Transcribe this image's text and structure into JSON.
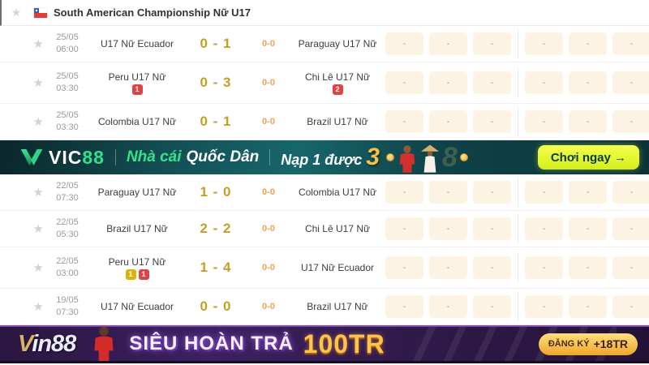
{
  "header": {
    "title": "South American Championship Nữ U17",
    "flag_icon": "chile-flag",
    "star_icon": "favorite-star"
  },
  "sections": {
    "matches_before_vic_banner": 3
  },
  "odds": {
    "placeholder": "-",
    "groups": 2,
    "columns_per_group": 3
  },
  "matches": [
    {
      "date": "25/05",
      "time": "06:00",
      "home": "U17 Nữ Ecuador",
      "score": "0 - 1",
      "ht": "0-0",
      "away": "Paraguay U17 Nữ",
      "home_badges": [],
      "away_badges": []
    },
    {
      "date": "25/05",
      "time": "03:30",
      "home": "Peru U17 Nữ",
      "score": "0 - 3",
      "ht": "0-0",
      "away": "Chi Lê U17 Nữ",
      "home_badges": [
        {
          "type": "red",
          "count": "1"
        }
      ],
      "away_badges": [
        {
          "type": "red",
          "count": "2"
        }
      ]
    },
    {
      "date": "25/05",
      "time": "03:30",
      "home": "Colombia U17 Nữ",
      "score": "0 - 1",
      "ht": "0-0",
      "away": "Brazil U17 Nữ",
      "home_badges": [],
      "away_badges": []
    },
    {
      "date": "22/05",
      "time": "07:30",
      "home": "Paraguay U17 Nữ",
      "score": "1 - 0",
      "ht": "0-0",
      "away": "Colombia U17 Nữ",
      "home_badges": [],
      "away_badges": []
    },
    {
      "date": "22/05",
      "time": "05:30",
      "home": "Brazil U17 Nữ",
      "score": "2 - 2",
      "ht": "0-0",
      "away": "Chi Lê U17 Nữ",
      "home_badges": [],
      "away_badges": []
    },
    {
      "date": "22/05",
      "time": "03:00",
      "home": "Peru U17 Nữ",
      "score": "1 - 4",
      "ht": "0-0",
      "away": "U17 Nữ Ecuador",
      "home_badges": [
        {
          "type": "yellow",
          "count": "1"
        },
        {
          "type": "red",
          "count": "1"
        }
      ],
      "away_badges": []
    },
    {
      "date": "19/05",
      "time": "07:30",
      "home": "U17 Nữ Ecuador",
      "score": "0 - 0",
      "ht": "0-0",
      "away": "Brazil U17 Nữ",
      "home_badges": [],
      "away_badges": []
    }
  ],
  "vic_banner": {
    "brand": "VIC88",
    "brand_prefix": "VIC",
    "brand_suffix": "88",
    "tagline_green": "Nhà cái",
    "tagline_white": "Quốc Dân",
    "promo_text": "Nạp 1 được",
    "promo_number": "3",
    "watermark": "8",
    "cta": "Chơi ngay →"
  },
  "vin_banner": {
    "brand": "Vin88",
    "brand_v": "V",
    "brand_rest": "in88",
    "headline": "SIÊU HOÀN TRẢ",
    "amount": "100TR",
    "cta_label": "ĐĂNG KÝ",
    "cta_bonus": "+18TR"
  },
  "colors": {
    "score_gold": "#c59e22",
    "halftime_orange": "#f2a24f",
    "odds_cell_bg": "#fdf3e2",
    "red_card": "#e04343",
    "yellow_card": "#d9b40d",
    "vic_green": "#2fe08d",
    "vic_cta_yellow": "#e3f739",
    "vin_purple": "#3d2060",
    "vin_gold": "#ffc24a"
  }
}
